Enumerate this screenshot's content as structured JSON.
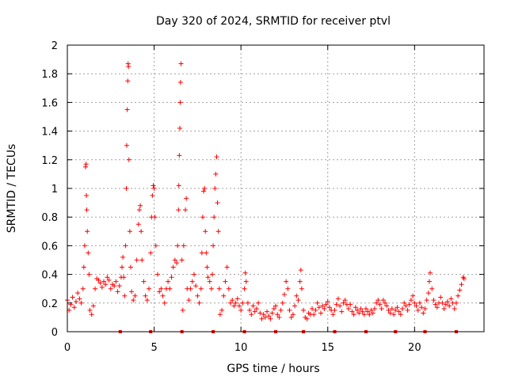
{
  "chart_data": {
    "type": "scatter",
    "title": "Day 320 of 2024, SRMTID for receiver ptvl",
    "xlabel": "GPS time / hours",
    "ylabel": "SRMTID / TECUs",
    "xlim": [
      0,
      24
    ],
    "ylim": [
      0,
      2
    ],
    "xticks": [
      0,
      5,
      10,
      15,
      20
    ],
    "yticks": [
      0,
      0.2,
      0.4,
      0.6,
      0.8,
      1,
      1.2,
      1.4,
      1.6,
      1.8,
      2
    ],
    "xtick_labels": [
      "0",
      "5",
      "10",
      "15",
      "20"
    ],
    "ytick_labels": [
      "0",
      "0.2",
      "0.4",
      "0.6",
      "0.8",
      "1",
      "1.2",
      "1.4",
      "1.6",
      "1.8",
      "2"
    ],
    "grid": true,
    "marker": "+",
    "color": "#ff0000",
    "series": [
      {
        "name": "SRMTID",
        "points": [
          [
            0.0,
            0.22
          ],
          [
            0.1,
            0.15
          ],
          [
            0.2,
            0.19
          ],
          [
            0.3,
            0.24
          ],
          [
            0.4,
            0.17
          ],
          [
            0.5,
            0.21
          ],
          [
            0.6,
            0.27
          ],
          [
            0.7,
            0.23
          ],
          [
            0.8,
            0.2
          ],
          [
            0.9,
            0.3
          ],
          [
            0.95,
            0.45
          ],
          [
            1.0,
            0.6
          ],
          [
            1.05,
            1.15
          ],
          [
            1.08,
            1.17
          ],
          [
            1.1,
            0.95
          ],
          [
            1.12,
            0.85
          ],
          [
            1.15,
            0.7
          ],
          [
            1.2,
            0.55
          ],
          [
            1.25,
            0.4
          ],
          [
            1.3,
            0.15
          ],
          [
            1.4,
            0.12
          ],
          [
            1.5,
            0.18
          ],
          [
            1.6,
            0.3
          ],
          [
            1.7,
            0.37
          ],
          [
            1.8,
            0.36
          ],
          [
            1.9,
            0.34
          ],
          [
            2.0,
            0.31
          ],
          [
            2.1,
            0.35
          ],
          [
            2.2,
            0.33
          ],
          [
            2.3,
            0.38
          ],
          [
            2.4,
            0.36
          ],
          [
            2.5,
            0.3
          ],
          [
            2.6,
            0.33
          ],
          [
            2.7,
            0.32
          ],
          [
            2.8,
            0.35
          ],
          [
            2.9,
            0.28
          ],
          [
            3.0,
            0.32
          ],
          [
            3.1,
            0.38
          ],
          [
            3.15,
            0.45
          ],
          [
            3.2,
            0.52
          ],
          [
            3.25,
            0.38
          ],
          [
            3.3,
            0.25
          ],
          [
            3.35,
            0.6
          ],
          [
            3.4,
            1.0
          ],
          [
            3.42,
            1.3
          ],
          [
            3.45,
            1.55
          ],
          [
            3.48,
            1.75
          ],
          [
            3.5,
            1.87
          ],
          [
            3.52,
            1.85
          ],
          [
            3.55,
            1.2
          ],
          [
            3.6,
            0.7
          ],
          [
            3.65,
            0.45
          ],
          [
            3.7,
            0.28
          ],
          [
            3.8,
            0.22
          ],
          [
            3.9,
            0.25
          ],
          [
            4.0,
            0.5
          ],
          [
            4.1,
            0.75
          ],
          [
            4.15,
            0.85
          ],
          [
            4.2,
            0.88
          ],
          [
            4.25,
            0.7
          ],
          [
            4.3,
            0.5
          ],
          [
            4.4,
            0.35
          ],
          [
            4.5,
            0.25
          ],
          [
            4.6,
            0.22
          ],
          [
            4.7,
            0.3
          ],
          [
            4.8,
            0.55
          ],
          [
            4.85,
            0.8
          ],
          [
            4.9,
            0.95
          ],
          [
            4.95,
            1.02
          ],
          [
            5.0,
            1.0
          ],
          [
            5.05,
            0.8
          ],
          [
            5.1,
            0.6
          ],
          [
            5.2,
            0.4
          ],
          [
            5.3,
            0.28
          ],
          [
            5.4,
            0.3
          ],
          [
            5.5,
            0.25
          ],
          [
            5.6,
            0.2
          ],
          [
            5.7,
            0.3
          ],
          [
            5.8,
            0.35
          ],
          [
            5.9,
            0.3
          ],
          [
            6.0,
            0.38
          ],
          [
            6.1,
            0.45
          ],
          [
            6.2,
            0.5
          ],
          [
            6.3,
            0.48
          ],
          [
            6.35,
            0.6
          ],
          [
            6.4,
            0.85
          ],
          [
            6.42,
            1.02
          ],
          [
            6.45,
            1.23
          ],
          [
            6.48,
            1.42
          ],
          [
            6.5,
            1.6
          ],
          [
            6.52,
            1.74
          ],
          [
            6.55,
            1.87
          ],
          [
            6.6,
            0.5
          ],
          [
            6.65,
            0.15
          ],
          [
            6.7,
            0.6
          ],
          [
            6.8,
            0.85
          ],
          [
            6.85,
            0.93
          ],
          [
            6.9,
            0.3
          ],
          [
            7.0,
            0.22
          ],
          [
            7.1,
            0.3
          ],
          [
            7.2,
            0.35
          ],
          [
            7.3,
            0.4
          ],
          [
            7.4,
            0.32
          ],
          [
            7.5,
            0.25
          ],
          [
            7.6,
            0.2
          ],
          [
            7.7,
            0.3
          ],
          [
            7.75,
            0.55
          ],
          [
            7.8,
            0.8
          ],
          [
            7.85,
            0.98
          ],
          [
            7.9,
            1.0
          ],
          [
            7.95,
            0.7
          ],
          [
            8.0,
            0.55
          ],
          [
            8.05,
            0.45
          ],
          [
            8.1,
            0.38
          ],
          [
            8.2,
            0.35
          ],
          [
            8.3,
            0.3
          ],
          [
            8.35,
            0.4
          ],
          [
            8.4,
            0.6
          ],
          [
            8.45,
            0.8
          ],
          [
            8.5,
            1.0
          ],
          [
            8.55,
            1.1
          ],
          [
            8.6,
            1.22
          ],
          [
            8.65,
            0.9
          ],
          [
            8.7,
            0.7
          ],
          [
            8.75,
            0.3
          ],
          [
            8.8,
            0.12
          ],
          [
            8.9,
            0.15
          ],
          [
            9.0,
            0.25
          ],
          [
            9.1,
            0.35
          ],
          [
            9.2,
            0.45
          ],
          [
            9.3,
            0.3
          ],
          [
            9.4,
            0.2
          ],
          [
            9.5,
            0.22
          ],
          [
            9.6,
            0.18
          ],
          [
            9.7,
            0.2
          ],
          [
            9.8,
            0.23
          ],
          [
            9.9,
            0.18
          ],
          [
            10.0,
            0.15
          ],
          [
            10.1,
            0.2
          ],
          [
            10.2,
            0.3
          ],
          [
            10.25,
            0.41
          ],
          [
            10.3,
            0.35
          ],
          [
            10.4,
            0.2
          ],
          [
            10.5,
            0.15
          ],
          [
            10.6,
            0.12
          ],
          [
            10.7,
            0.18
          ],
          [
            10.8,
            0.14
          ],
          [
            10.9,
            0.16
          ],
          [
            11.0,
            0.2
          ],
          [
            11.1,
            0.13
          ],
          [
            11.2,
            0.09
          ],
          [
            11.3,
            0.12
          ],
          [
            11.4,
            0.1
          ],
          [
            11.5,
            0.14
          ],
          [
            11.6,
            0.11
          ],
          [
            11.7,
            0.09
          ],
          [
            11.8,
            0.13
          ],
          [
            11.9,
            0.16
          ],
          [
            12.0,
            0.18
          ],
          [
            12.1,
            0.12
          ],
          [
            12.2,
            0.1
          ],
          [
            12.3,
            0.15
          ],
          [
            12.4,
            0.2
          ],
          [
            12.5,
            0.26
          ],
          [
            12.6,
            0.35
          ],
          [
            12.7,
            0.3
          ],
          [
            12.8,
            0.15
          ],
          [
            12.9,
            0.1
          ],
          [
            13.0,
            0.12
          ],
          [
            13.1,
            0.18
          ],
          [
            13.2,
            0.25
          ],
          [
            13.3,
            0.22
          ],
          [
            13.4,
            0.35
          ],
          [
            13.45,
            0.43
          ],
          [
            13.5,
            0.3
          ],
          [
            13.6,
            0.15
          ],
          [
            13.7,
            0.1
          ],
          [
            13.8,
            0.09
          ],
          [
            13.9,
            0.13
          ],
          [
            14.0,
            0.12
          ],
          [
            14.1,
            0.16
          ],
          [
            14.2,
            0.12
          ],
          [
            14.3,
            0.15
          ],
          [
            14.4,
            0.2
          ],
          [
            14.5,
            0.17
          ],
          [
            14.6,
            0.13
          ],
          [
            14.7,
            0.18
          ],
          [
            14.8,
            0.16
          ],
          [
            14.9,
            0.19
          ],
          [
            15.0,
            0.21
          ],
          [
            15.1,
            0.17
          ],
          [
            15.2,
            0.15
          ],
          [
            15.3,
            0.12
          ],
          [
            15.4,
            0.15
          ],
          [
            15.5,
            0.19
          ],
          [
            15.6,
            0.23
          ],
          [
            15.7,
            0.18
          ],
          [
            15.8,
            0.14
          ],
          [
            15.9,
            0.2
          ],
          [
            16.0,
            0.22
          ],
          [
            16.1,
            0.19
          ],
          [
            16.2,
            0.16
          ],
          [
            16.3,
            0.19
          ],
          [
            16.4,
            0.14
          ],
          [
            16.5,
            0.12
          ],
          [
            16.6,
            0.17
          ],
          [
            16.7,
            0.15
          ],
          [
            16.8,
            0.13
          ],
          [
            16.9,
            0.16
          ],
          [
            17.0,
            0.14
          ],
          [
            17.1,
            0.12
          ],
          [
            17.2,
            0.16
          ],
          [
            17.3,
            0.14
          ],
          [
            17.4,
            0.12
          ],
          [
            17.5,
            0.15
          ],
          [
            17.6,
            0.13
          ],
          [
            17.7,
            0.16
          ],
          [
            17.8,
            0.2
          ],
          [
            17.9,
            0.22
          ],
          [
            18.0,
            0.19
          ],
          [
            18.1,
            0.16
          ],
          [
            18.2,
            0.22
          ],
          [
            18.3,
            0.2
          ],
          [
            18.4,
            0.18
          ],
          [
            18.5,
            0.15
          ],
          [
            18.6,
            0.13
          ],
          [
            18.7,
            0.16
          ],
          [
            18.8,
            0.12
          ],
          [
            18.9,
            0.15
          ],
          [
            19.0,
            0.17
          ],
          [
            19.1,
            0.14
          ],
          [
            19.2,
            0.12
          ],
          [
            19.3,
            0.16
          ],
          [
            19.4,
            0.2
          ],
          [
            19.5,
            0.18
          ],
          [
            19.6,
            0.15
          ],
          [
            19.7,
            0.19
          ],
          [
            19.8,
            0.22
          ],
          [
            19.9,
            0.25
          ],
          [
            20.0,
            0.2
          ],
          [
            20.1,
            0.18
          ],
          [
            20.2,
            0.15
          ],
          [
            20.3,
            0.2
          ],
          [
            20.4,
            0.17
          ],
          [
            20.5,
            0.13
          ],
          [
            20.6,
            0.16
          ],
          [
            20.7,
            0.22
          ],
          [
            20.8,
            0.27
          ],
          [
            20.85,
            0.35
          ],
          [
            20.9,
            0.41
          ],
          [
            21.0,
            0.3
          ],
          [
            21.1,
            0.22
          ],
          [
            21.2,
            0.19
          ],
          [
            21.3,
            0.17
          ],
          [
            21.4,
            0.2
          ],
          [
            21.5,
            0.24
          ],
          [
            21.6,
            0.2
          ],
          [
            21.7,
            0.16
          ],
          [
            21.8,
            0.19
          ],
          [
            21.9,
            0.21
          ],
          [
            22.0,
            0.18
          ],
          [
            22.1,
            0.23
          ],
          [
            22.2,
            0.2
          ],
          [
            22.3,
            0.16
          ],
          [
            22.4,
            0.2
          ],
          [
            22.5,
            0.25
          ],
          [
            22.6,
            0.29
          ],
          [
            22.7,
            0.33
          ],
          [
            22.8,
            0.38
          ],
          [
            22.85,
            0.37
          ]
        ]
      }
    ],
    "baseline_markers_x": [
      3.05,
      4.8,
      6.6,
      8.4,
      10.2,
      12.0,
      13.6,
      15.4,
      17.2,
      18.9,
      20.6,
      22.4
    ]
  }
}
